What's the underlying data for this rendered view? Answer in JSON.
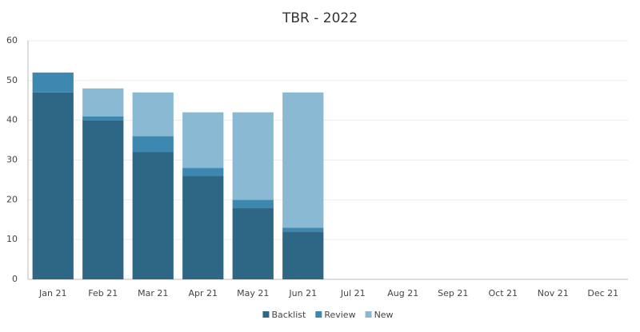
{
  "chart_data": {
    "type": "bar",
    "stacked": true,
    "title": "TBR - 2022",
    "categories": [
      "Jan 21",
      "Feb 21",
      "Mar 21",
      "Apr 21",
      "May 21",
      "Jun 21",
      "Jul 21",
      "Aug 21",
      "Sep 21",
      "Oct 21",
      "Nov 21",
      "Dec 21"
    ],
    "series": [
      {
        "name": "Backlist",
        "color": "#2e6785",
        "values": [
          47,
          40,
          32,
          26,
          18,
          12,
          null,
          null,
          null,
          null,
          null,
          null
        ]
      },
      {
        "name": "Review",
        "color": "#3c88b0",
        "values": [
          5,
          1,
          4,
          2,
          2,
          1,
          null,
          null,
          null,
          null,
          null,
          null
        ]
      },
      {
        "name": "New",
        "color": "#8ab9d4",
        "values": [
          0,
          7,
          11,
          14,
          22,
          34,
          null,
          null,
          null,
          null,
          null,
          null
        ]
      }
    ],
    "ylim": [
      0,
      60
    ],
    "yticks": [
      0,
      10,
      20,
      30,
      40,
      50,
      60
    ],
    "grid": true,
    "legend": "bottom"
  }
}
